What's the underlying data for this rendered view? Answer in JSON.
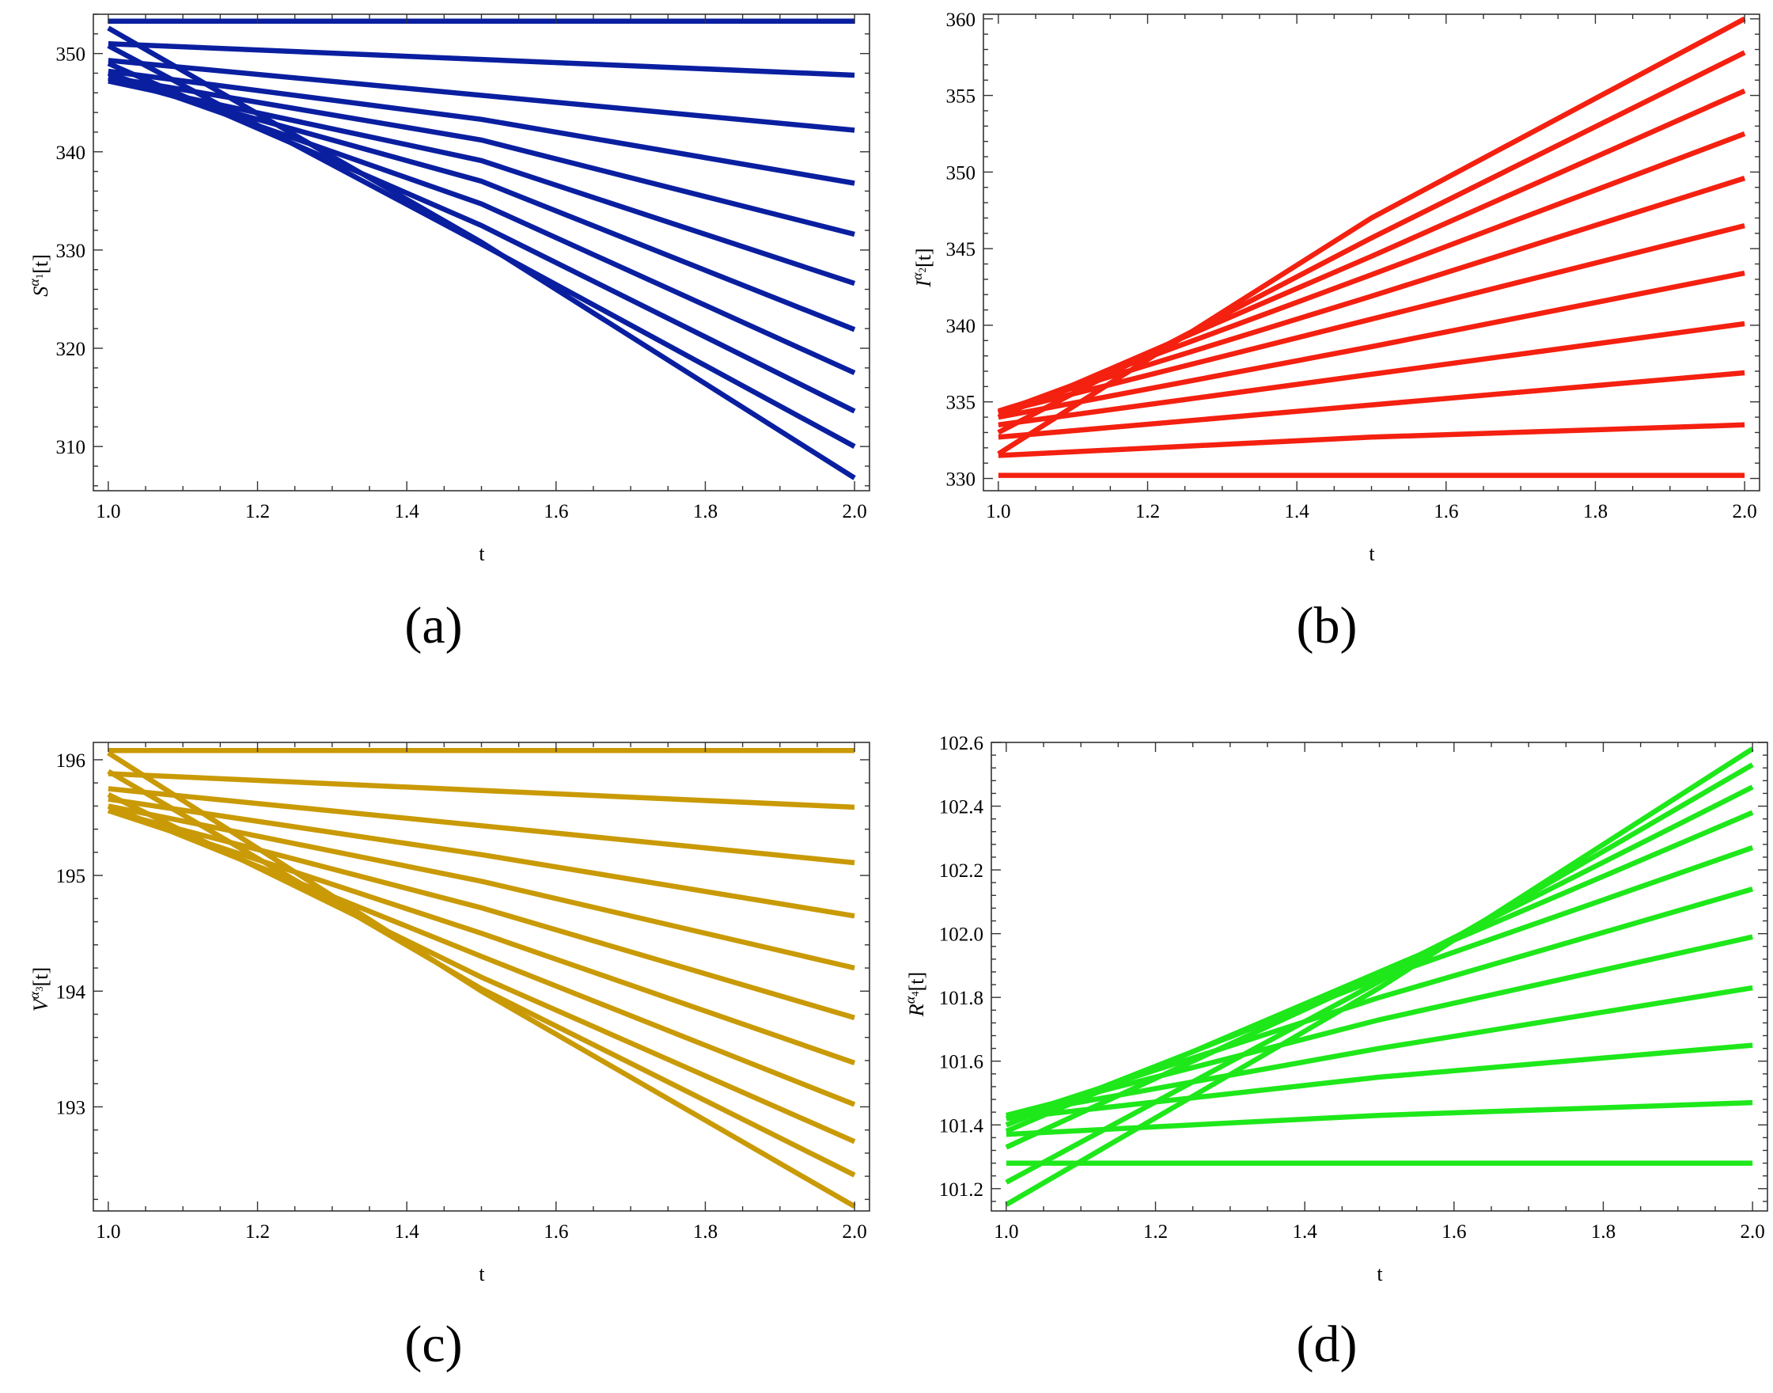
{
  "figure": {
    "panels": [
      {
        "id": "a",
        "label": "(a)"
      },
      {
        "id": "b",
        "label": "(b)"
      },
      {
        "id": "c",
        "label": "(c)"
      },
      {
        "id": "d",
        "label": "(d)"
      }
    ]
  },
  "chart_data": [
    {
      "panel": "(a)",
      "type": "line",
      "color": "#0a1fa0",
      "xlabel": "t",
      "ylabel_base": "S",
      "ylabel_sup_base": "α",
      "ylabel_sub": "1",
      "ylabel_suffix": "[t]",
      "xlim": [
        0.98,
        2.02
      ],
      "ylim": [
        305.5,
        354.0
      ],
      "xticks": [
        1.0,
        1.2,
        1.4,
        1.6,
        1.8,
        2.0
      ],
      "xtick_labels": [
        "1.0",
        "1.2",
        "1.4",
        "1.6",
        "1.8",
        "2.0"
      ],
      "yticks": [
        310,
        320,
        330,
        340,
        350
      ],
      "ytick_labels": [
        "310",
        "320",
        "330",
        "340",
        "350"
      ],
      "series": [
        {
          "name": "s1",
          "x": [
            1.0,
            2.0
          ],
          "y": [
            353.3,
            353.3
          ]
        },
        {
          "name": "s2",
          "x": [
            1.0,
            2.0
          ],
          "y": [
            351.0,
            347.8
          ]
        },
        {
          "name": "s3",
          "x": [
            1.0,
            2.0
          ],
          "y": [
            349.3,
            342.2
          ]
        },
        {
          "name": "s4",
          "x": [
            1.0,
            1.5,
            2.0
          ],
          "y": [
            348.2,
            343.3,
            336.8
          ]
        },
        {
          "name": "s5",
          "x": [
            1.0,
            1.5,
            2.0
          ],
          "y": [
            347.6,
            341.2,
            331.6
          ]
        },
        {
          "name": "s6",
          "x": [
            1.0,
            1.5,
            2.0
          ],
          "y": [
            347.2,
            339.1,
            326.6
          ]
        },
        {
          "name": "s7",
          "x": [
            1.0,
            1.5,
            2.0
          ],
          "y": [
            347.5,
            337.0,
            321.9
          ]
        },
        {
          "name": "s8",
          "x": [
            1.0,
            1.5,
            2.0
          ],
          "y": [
            348.0,
            334.7,
            317.5
          ]
        },
        {
          "name": "s9",
          "x": [
            1.0,
            1.5,
            2.0
          ],
          "y": [
            349.0,
            332.5,
            313.6
          ]
        },
        {
          "name": "s10",
          "x": [
            1.0,
            1.5,
            2.0
          ],
          "y": [
            350.8,
            330.6,
            310.0
          ]
        },
        {
          "name": "s11",
          "x": [
            1.0,
            1.5,
            2.0
          ],
          "y": [
            352.6,
            330.8,
            306.8
          ]
        }
      ]
    },
    {
      "panel": "(b)",
      "type": "line",
      "color": "#f42010",
      "xlabel": "t",
      "ylabel_base": "I",
      "ylabel_sup_base": "α",
      "ylabel_sub": "2",
      "ylabel_suffix": "[t]",
      "xlim": [
        0.98,
        2.02
      ],
      "ylim": [
        329.2,
        360.3
      ],
      "xticks": [
        1.0,
        1.2,
        1.4,
        1.6,
        1.8,
        2.0
      ],
      "xtick_labels": [
        "1.0",
        "1.2",
        "1.4",
        "1.6",
        "1.8",
        "2.0"
      ],
      "yticks": [
        330,
        335,
        340,
        345,
        350,
        355,
        360
      ],
      "ytick_labels": [
        "330",
        "335",
        "340",
        "345",
        "350",
        "355",
        "360"
      ],
      "series": [
        {
          "name": "s1",
          "x": [
            1.0,
            2.0
          ],
          "y": [
            330.2,
            330.2
          ]
        },
        {
          "name": "s2",
          "x": [
            1.0,
            1.5,
            2.0
          ],
          "y": [
            331.5,
            332.7,
            333.5
          ]
        },
        {
          "name": "s3",
          "x": [
            1.0,
            1.5,
            2.0
          ],
          "y": [
            332.7,
            334.8,
            336.9
          ]
        },
        {
          "name": "s4",
          "x": [
            1.0,
            1.5,
            2.0
          ],
          "y": [
            333.5,
            336.8,
            340.1
          ]
        },
        {
          "name": "s5",
          "x": [
            1.0,
            1.5,
            2.0
          ],
          "y": [
            334.0,
            338.6,
            343.4
          ]
        },
        {
          "name": "s6",
          "x": [
            1.0,
            1.5,
            2.0
          ],
          "y": [
            334.3,
            340.4,
            346.5
          ]
        },
        {
          "name": "s7",
          "x": [
            1.0,
            1.5,
            2.0
          ],
          "y": [
            334.4,
            341.9,
            349.6
          ]
        },
        {
          "name": "s8",
          "x": [
            1.0,
            1.5,
            2.0
          ],
          "y": [
            334.3,
            343.3,
            352.5
          ]
        },
        {
          "name": "s9",
          "x": [
            1.0,
            1.5,
            2.0
          ],
          "y": [
            334.0,
            344.5,
            355.3
          ]
        },
        {
          "name": "s10",
          "x": [
            1.0,
            1.5,
            2.0
          ],
          "y": [
            333.0,
            345.7,
            357.8
          ]
        },
        {
          "name": "s11",
          "x": [
            1.0,
            1.5,
            2.0
          ],
          "y": [
            331.6,
            347.0,
            360.0
          ]
        }
      ]
    },
    {
      "panel": "(c)",
      "type": "line",
      "color": "#c99a06",
      "xlabel": "t",
      "ylabel_base": "V",
      "ylabel_sup_base": "α",
      "ylabel_sub": "3",
      "ylabel_suffix": "[t]",
      "xlim": [
        0.98,
        2.02
      ],
      "ylim": [
        192.1,
        196.15
      ],
      "xticks": [
        1.0,
        1.2,
        1.4,
        1.6,
        1.8,
        2.0
      ],
      "xtick_labels": [
        "1.0",
        "1.2",
        "1.4",
        "1.6",
        "1.8",
        "2.0"
      ],
      "yticks": [
        193,
        194,
        195,
        196
      ],
      "ytick_labels": [
        "193",
        "194",
        "195",
        "196"
      ],
      "series": [
        {
          "name": "s1",
          "x": [
            1.0,
            2.0
          ],
          "y": [
            196.08,
            196.08
          ]
        },
        {
          "name": "s2",
          "x": [
            1.0,
            2.0
          ],
          "y": [
            195.88,
            195.59
          ]
        },
        {
          "name": "s3",
          "x": [
            1.0,
            2.0
          ],
          "y": [
            195.75,
            195.11
          ]
        },
        {
          "name": "s4",
          "x": [
            1.0,
            1.5,
            2.0
          ],
          "y": [
            195.66,
            195.18,
            194.65
          ]
        },
        {
          "name": "s5",
          "x": [
            1.0,
            1.5,
            2.0
          ],
          "y": [
            195.6,
            194.95,
            194.2
          ]
        },
        {
          "name": "s6",
          "x": [
            1.0,
            1.5,
            2.0
          ],
          "y": [
            195.56,
            194.72,
            193.77
          ]
        },
        {
          "name": "s7",
          "x": [
            1.0,
            1.5,
            2.0
          ],
          "y": [
            195.56,
            194.5,
            193.38
          ]
        },
        {
          "name": "s8",
          "x": [
            1.0,
            1.5,
            2.0
          ],
          "y": [
            195.6,
            194.3,
            193.02
          ]
        },
        {
          "name": "s9",
          "x": [
            1.0,
            1.5,
            2.0
          ],
          "y": [
            195.7,
            194.12,
            192.7
          ]
        },
        {
          "name": "s10",
          "x": [
            1.0,
            1.5,
            2.0
          ],
          "y": [
            195.9,
            194.02,
            192.41
          ]
        },
        {
          "name": "s11",
          "x": [
            1.0,
            1.5,
            2.0
          ],
          "y": [
            196.06,
            194.0,
            192.14
          ]
        }
      ]
    },
    {
      "panel": "(d)",
      "type": "line",
      "color": "#1ee81a",
      "xlabel": "t",
      "ylabel_base": "R",
      "ylabel_sup_base": "α",
      "ylabel_sub": "4",
      "ylabel_suffix": "[t]",
      "xlim": [
        0.98,
        2.02
      ],
      "ylim": [
        101.13,
        102.6
      ],
      "xticks": [
        1.0,
        1.2,
        1.4,
        1.6,
        1.8,
        2.0
      ],
      "xtick_labels": [
        "1.0",
        "1.2",
        "1.4",
        "1.6",
        "1.8",
        "2.0"
      ],
      "yticks": [
        101.2,
        101.4,
        101.6,
        101.8,
        102.0,
        102.2,
        102.4,
        102.6
      ],
      "ytick_labels": [
        "101.2",
        "101.4",
        "101.6",
        "101.8",
        "102.0",
        "102.2",
        "102.4",
        "102.6"
      ],
      "series": [
        {
          "name": "s1",
          "x": [
            1.0,
            2.0
          ],
          "y": [
            101.28,
            101.28
          ]
        },
        {
          "name": "s2",
          "x": [
            1.0,
            1.5,
            2.0
          ],
          "y": [
            101.37,
            101.43,
            101.47
          ]
        },
        {
          "name": "s3",
          "x": [
            1.0,
            1.5,
            2.0
          ],
          "y": [
            101.42,
            101.55,
            101.65
          ]
        },
        {
          "name": "s4",
          "x": [
            1.0,
            1.5,
            2.0
          ],
          "y": [
            101.43,
            101.64,
            101.83
          ]
        },
        {
          "name": "s5",
          "x": [
            1.0,
            1.5,
            2.0
          ],
          "y": [
            101.43,
            101.73,
            101.99
          ]
        },
        {
          "name": "s6",
          "x": [
            1.0,
            1.5,
            2.0
          ],
          "y": [
            101.42,
            101.8,
            102.14
          ]
        },
        {
          "name": "s7",
          "x": [
            1.0,
            1.5,
            2.0
          ],
          "y": [
            101.4,
            101.86,
            102.27
          ]
        },
        {
          "name": "s8",
          "x": [
            1.0,
            1.5,
            2.0
          ],
          "y": [
            101.38,
            101.88,
            102.38
          ]
        },
        {
          "name": "s9",
          "x": [
            1.0,
            1.5,
            2.0
          ],
          "y": [
            101.33,
            101.87,
            102.46
          ]
        },
        {
          "name": "s10",
          "x": [
            1.0,
            1.5,
            2.0
          ],
          "y": [
            101.22,
            101.85,
            102.53
          ]
        },
        {
          "name": "s11",
          "x": [
            1.0,
            1.5,
            2.0
          ],
          "y": [
            101.15,
            101.83,
            102.58
          ]
        }
      ]
    }
  ]
}
